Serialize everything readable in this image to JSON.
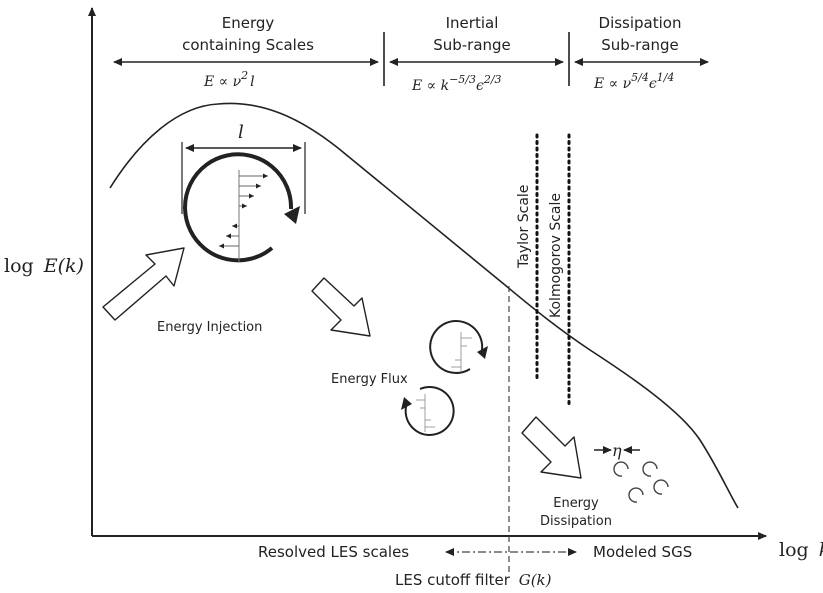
{
  "axes": {
    "y_label_prefix": "log",
    "y_label_math": "E(k)",
    "x_label_prefix": "log",
    "x_label_math": "k"
  },
  "ranges": {
    "energy": {
      "title_line1": "Energy",
      "title_line2": "containing Scales",
      "formula_main": "E ∝ ν",
      "formula_exp": "2",
      "formula_tail": "l"
    },
    "inertial": {
      "title_line1": "Inertial",
      "title_line2": "Sub-range",
      "formula_main": "E ∝ k",
      "formula_exp1": "−5/3",
      "formula_mid": "ϵ",
      "formula_exp2": "2/3"
    },
    "dissipation": {
      "title_line1": "Dissipation",
      "title_line2": "Sub-range",
      "formula_main": "E ∝ ν",
      "formula_exp1": "5/4",
      "formula_mid": "ϵ",
      "formula_exp2": "1/4"
    }
  },
  "length_scale_symbol": "l",
  "eta_symbol": "η",
  "labels": {
    "energy_injection": "Energy Injection",
    "energy_flux": "Energy Flux",
    "energy_dissipation_line1": "Energy",
    "energy_dissipation_line2": "Dissipation",
    "taylor_scale": "Taylor Scale",
    "kolmogorov_scale": "Kolmogorov Scale",
    "resolved_les": "Resolved LES scales",
    "modeled_sgs": "Modeled SGS",
    "les_cutoff_text": "LES cutoff filter",
    "les_cutoff_math": "G(k)"
  },
  "colors": {
    "ink": "#222222",
    "background": "#ffffff"
  }
}
